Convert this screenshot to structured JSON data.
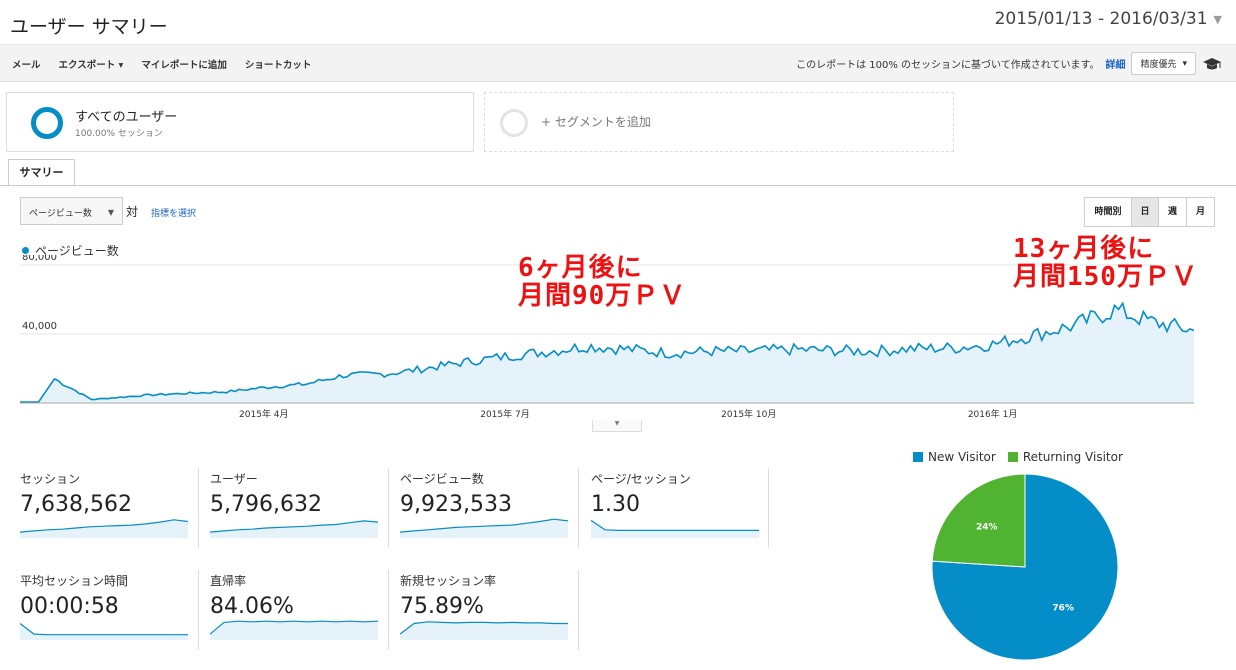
{
  "page_title": "ユーザー サマリー",
  "date_range": "2015/01/13 - 2016/03/31",
  "toolbar": {
    "items": [
      "メール",
      "エクスポート ▾",
      "マイレポートに追加",
      "ショートカット"
    ],
    "notice": "このレポートは 100% のセッションに基づいて作成されています。",
    "detail_link": "詳細",
    "precision": "精度優先"
  },
  "segments": {
    "all_users": "すべてのユーザー",
    "all_users_sub": "100.00% セッション",
    "add_segment": "+ セグメントを追加"
  },
  "tab_summary": "サマリー",
  "metric_select": "ページビュー数",
  "vs_label": "対",
  "select_metric_link": "指標を選択",
  "time_buttons": [
    "時間別",
    "日",
    "週",
    "月"
  ],
  "time_active": "日",
  "chart_legend": "ページビュー数",
  "colors": {
    "series": "#058dc7",
    "fill": "#e6f2fa",
    "new_visitor": "#058dc7",
    "returning_visitor": "#50b432",
    "annotation": "#ee1111"
  },
  "annotations": {
    "left": "6ヶ月後に\n月間90万ＰＶ",
    "right": "13ヶ月後に\n月間150万ＰＶ"
  },
  "chart_data": {
    "type": "line",
    "series_name": "ページビュー数",
    "yticks": [
      "80,000",
      "40,000"
    ],
    "ylim": [
      0,
      80000
    ],
    "xticks": [
      "2015年 4月",
      "2015年 7月",
      "2015年 10月",
      "2016年 1月"
    ],
    "x": [
      "2015/01/13",
      "2015/01/20",
      "2015/01/26",
      "2015/02/09",
      "2015/03/01",
      "2015/03/15",
      "2015/04/01",
      "2015/04/15",
      "2015/05/01",
      "2015/05/15",
      "2015/06/01",
      "2015/06/15",
      "2015/07/01",
      "2015/07/15",
      "2015/08/01",
      "2015/08/15",
      "2015/09/01",
      "2015/09/15",
      "2015/10/01",
      "2015/10/15",
      "2015/11/01",
      "2015/11/15",
      "2015/12/01",
      "2015/12/15",
      "2016/01/01",
      "2016/01/15",
      "2016/02/01",
      "2016/02/15",
      "2016/03/01",
      "2016/03/15",
      "2016/03/31"
    ],
    "values": [
      500,
      600,
      14000,
      2000,
      4500,
      5500,
      6500,
      9000,
      11000,
      16000,
      17000,
      20000,
      24000,
      27000,
      30000,
      33000,
      31000,
      29000,
      30000,
      30000,
      31000,
      30500,
      30000,
      31500,
      32000,
      34000,
      40000,
      45000,
      54000,
      47000,
      42000
    ]
  },
  "stats": [
    {
      "label": "セッション",
      "value": "7,638,562",
      "trend": [
        10,
        12,
        14,
        15,
        17,
        19,
        20,
        21,
        22,
        24,
        27,
        31,
        28
      ]
    },
    {
      "label": "ユーザー",
      "value": "5,796,632",
      "trend": [
        10,
        12,
        14,
        15,
        17,
        18,
        19,
        20,
        22,
        23,
        26,
        29,
        27
      ]
    },
    {
      "label": "ページビュー数",
      "value": "9,923,533",
      "trend": [
        10,
        12,
        14,
        16,
        18,
        19,
        20,
        21,
        22,
        25,
        28,
        32,
        29
      ]
    },
    {
      "label": "ページ/セッション",
      "value": "1.30",
      "trend": [
        30,
        14,
        13,
        13,
        13,
        13,
        13,
        13,
        13,
        13,
        13,
        13,
        13
      ]
    },
    {
      "label": "平均セッション時間",
      "value": "00:00:58",
      "trend": [
        28,
        10,
        9,
        9,
        9,
        9,
        9,
        9,
        9,
        9,
        9,
        9,
        9
      ]
    },
    {
      "label": "直帰率",
      "value": "84.06%",
      "trend": [
        10,
        30,
        32,
        31,
        32,
        31,
        32,
        31,
        32,
        31,
        32,
        31,
        32
      ]
    },
    {
      "label": "新規セッション率",
      "value": "75.89%",
      "trend": [
        10,
        28,
        31,
        30,
        29,
        30,
        30,
        29,
        30,
        29,
        29,
        28,
        28
      ]
    }
  ],
  "pie": {
    "legend": [
      "New Visitor",
      "Returning Visitor"
    ],
    "values": [
      76,
      24
    ],
    "labels": [
      "76%",
      "24%"
    ]
  }
}
